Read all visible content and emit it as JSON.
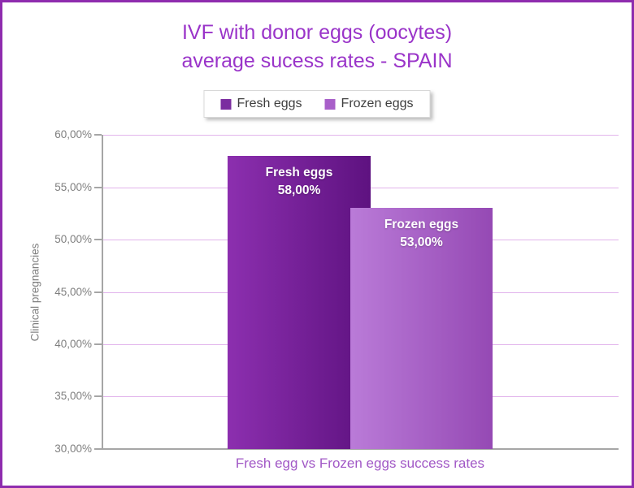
{
  "frame": {
    "border_color": "#8E2CAE",
    "background": "#ffffff"
  },
  "title": {
    "line1": "IVF with donor eggs (oocytes)",
    "line2": "average sucess rates - SPAIN",
    "color": "#9A34C9"
  },
  "legend": {
    "items": [
      {
        "label": "Fresh eggs",
        "color": "#7B2DA0"
      },
      {
        "label": "Frozen eggs",
        "color": "#A85FC9"
      }
    ]
  },
  "axes": {
    "y_label": "Clinical pregnancies",
    "y_ticks": [
      "60,00%",
      "55,00%",
      "50,00%",
      "45,00%",
      "40,00%",
      "35,00%",
      "30,00%"
    ],
    "x_label": "Fresh egg vs Frozen eggs success rates",
    "tick_color": "#7F7F7F",
    "axis_line_color": "#A6A6A6",
    "gridline_color": "#E2B4EC"
  },
  "bars": [
    {
      "name": "Fresh eggs",
      "value_label": "58,00%"
    },
    {
      "name": "Frozen eggs",
      "value_label": "53,00%"
    }
  ],
  "chart_data": {
    "type": "bar",
    "categories": [
      "Fresh eggs",
      "Frozen eggs"
    ],
    "values": [
      58,
      53
    ],
    "value_labels": [
      "58,00%",
      "53,00%"
    ],
    "title": "IVF with donor eggs (oocytes) average sucess rates - SPAIN",
    "xlabel": "Fresh egg vs Frozen eggs success rates",
    "ylabel": "Clinical pregnancies",
    "ylim": [
      30,
      60
    ],
    "ytick_step": 5,
    "grid": true,
    "legend_position": "top",
    "bar_colors": [
      {
        "from": "#8C2FAF",
        "to": "#5E1280"
      },
      {
        "from": "#BA7BD8",
        "to": "#9549B4"
      }
    ]
  }
}
